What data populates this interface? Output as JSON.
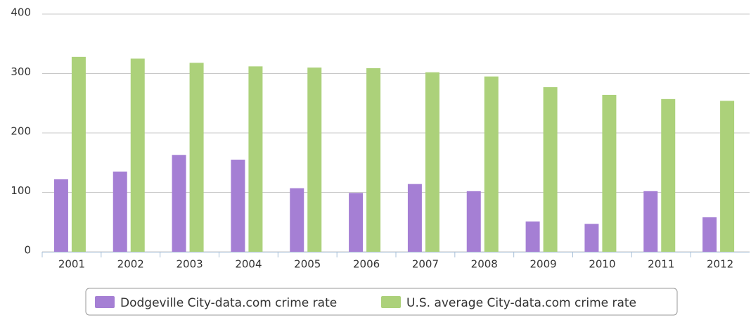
{
  "chart_data": {
    "type": "bar",
    "categories": [
      "2001",
      "2002",
      "2003",
      "2004",
      "2005",
      "2006",
      "2007",
      "2008",
      "2009",
      "2010",
      "2011",
      "2012"
    ],
    "series": [
      {
        "name": "Dodgeville City-data.com crime rate",
        "color": "#a57fd4",
        "values": [
          122,
          135,
          163,
          155,
          107,
          99,
          114,
          102,
          51,
          47,
          102,
          58
        ]
      },
      {
        "name": "U.S. average City-data.com crime rate",
        "color": "#acd17a",
        "values": [
          328,
          325,
          318,
          312,
          310,
          309,
          302,
          295,
          277,
          264,
          257,
          254
        ]
      }
    ],
    "ylim": [
      0,
      400
    ],
    "yticks": [
      0,
      100,
      200,
      300,
      400
    ],
    "grid": true
  }
}
